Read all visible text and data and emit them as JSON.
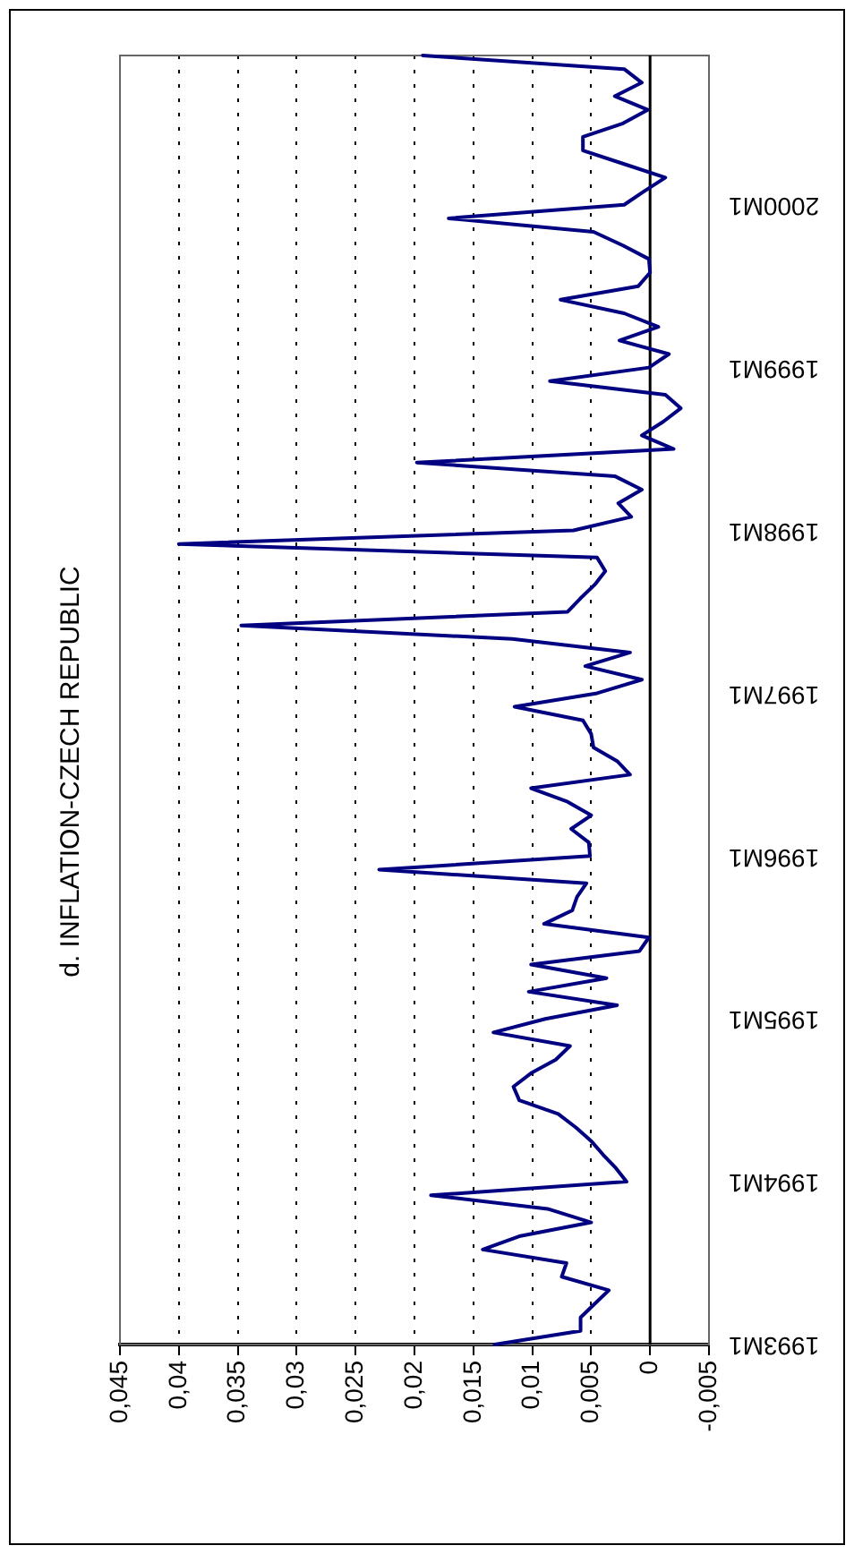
{
  "chart_data": {
    "type": "line",
    "orientation": "horizontal",
    "title": "d. INFLATION-CZECH REPUBLIC",
    "categories": [
      null,
      null,
      null,
      null,
      null,
      null,
      null,
      null,
      null,
      null,
      null,
      "2000M1",
      null,
      null,
      null,
      null,
      null,
      null,
      null,
      null,
      null,
      null,
      null,
      "1999M1",
      null,
      null,
      null,
      null,
      null,
      null,
      null,
      null,
      null,
      null,
      null,
      "1998M1",
      null,
      null,
      null,
      null,
      null,
      null,
      null,
      null,
      null,
      null,
      null,
      "1997M1",
      null,
      null,
      null,
      null,
      null,
      null,
      null,
      null,
      null,
      null,
      null,
      "1996M1",
      null,
      null,
      null,
      null,
      null,
      null,
      null,
      null,
      null,
      null,
      null,
      "1995M1",
      null,
      null,
      null,
      null,
      null,
      null,
      null,
      null,
      null,
      null,
      null,
      "1994M1",
      null,
      null,
      null,
      null,
      null,
      null,
      null,
      null,
      null,
      null,
      null,
      "1993M1"
    ],
    "values": [
      0.0193,
      0.0022,
      0.0007,
      0.003,
      0.0002,
      0.0023,
      0.0057,
      0.0057,
      0.0022,
      -0.0013,
      0.0005,
      0.0022,
      0.0171,
      0.0048,
      0.0023,
      0.0001,
      0.0,
      0.001,
      0.0076,
      0.0022,
      -0.0007,
      0.0026,
      -0.0016,
      0.0001,
      0.0085,
      -0.0013,
      -0.0026,
      -0.0011,
      0.0007,
      -0.002,
      0.0198,
      0.003,
      0.0007,
      0.0027,
      0.0016,
      0.0065,
      0.04,
      0.0045,
      0.0038,
      0.0047,
      0.0059,
      0.007,
      0.0347,
      0.0117,
      0.0017,
      0.0055,
      0.0007,
      0.0045,
      0.0115,
      0.0057,
      0.005,
      0.0048,
      0.0028,
      0.0017,
      0.0101,
      0.007,
      0.005,
      0.0067,
      0.0052,
      0.0051,
      0.023,
      0.0054,
      0.0062,
      0.0066,
      0.009,
      0.0001,
      0.0009,
      0.0101,
      0.0037,
      0.0103,
      0.0028,
      0.0089,
      0.0133,
      0.0068,
      0.008,
      0.0101,
      0.0116,
      0.0111,
      0.0078,
      0.0063,
      0.005,
      0.004,
      0.0029,
      0.002,
      0.0186,
      0.0087,
      0.005,
      0.011,
      0.0142,
      0.0071,
      0.0075,
      0.0035,
      0.0047,
      0.0059,
      0.0059,
      0.0132
    ],
    "color": "#000080",
    "xlim": [
      0.045,
      -0.005
    ],
    "xticks": [
      {
        "value": 0.045,
        "label": "0,045"
      },
      {
        "value": 0.04,
        "label": "0,04"
      },
      {
        "value": 0.035,
        "label": "0,035"
      },
      {
        "value": 0.03,
        "label": "0,03"
      },
      {
        "value": 0.025,
        "label": "0,025"
      },
      {
        "value": 0.02,
        "label": "0,02"
      },
      {
        "value": 0.015,
        "label": "0,015"
      },
      {
        "value": 0.01,
        "label": "0,01"
      },
      {
        "value": 0.005,
        "label": "0,005"
      },
      0,
      {
        "value": -0.005,
        "label": "-0,005"
      }
    ],
    "grid": "x",
    "ref_lines": [
      {
        "axis": "x",
        "value": 0,
        "color": "#000000"
      }
    ]
  }
}
